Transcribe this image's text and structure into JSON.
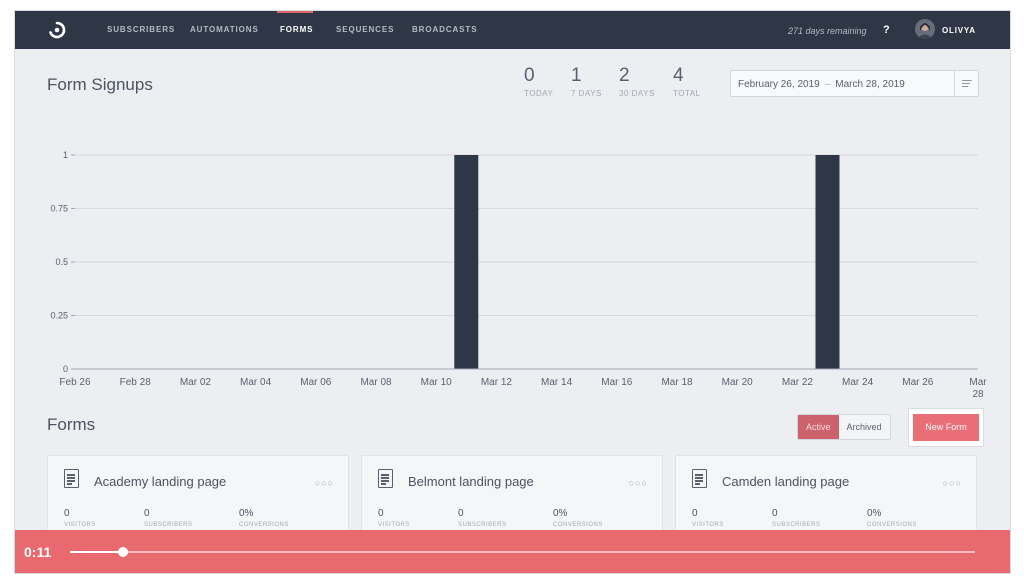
{
  "nav": {
    "items": [
      {
        "label": "SUBSCRIBERS",
        "active": false
      },
      {
        "label": "AUTOMATIONS",
        "active": false
      },
      {
        "label": "FORMS",
        "active": true
      },
      {
        "label": "SEQUENCES",
        "active": false
      },
      {
        "label": "BROADCASTS",
        "active": false
      }
    ],
    "days_remaining": "271 days remaining",
    "help": "?",
    "user": "OLIVYA",
    "logo_icon": "convertkit-logo-icon",
    "accent_color": "#e0565c"
  },
  "page": {
    "title": "Form Signups",
    "stats": [
      {
        "value": "0",
        "label": "TODAY"
      },
      {
        "value": "1",
        "label": "7 DAYS"
      },
      {
        "value": "2",
        "label": "30 DAYS"
      },
      {
        "value": "4",
        "label": "TOTAL"
      }
    ],
    "date_range": {
      "start": "February 26, 2019",
      "separator": "–",
      "end": "March 28, 2019"
    }
  },
  "chart_data": {
    "type": "bar",
    "categories": [
      "Feb 26",
      "Feb 27",
      "Feb 28",
      "Mar 01",
      "Mar 02",
      "Mar 03",
      "Mar 04",
      "Mar 05",
      "Mar 06",
      "Mar 07",
      "Mar 08",
      "Mar 09",
      "Mar 10",
      "Mar 11",
      "Mar 12",
      "Mar 13",
      "Mar 14",
      "Mar 15",
      "Mar 16",
      "Mar 17",
      "Mar 18",
      "Mar 19",
      "Mar 20",
      "Mar 21",
      "Mar 22",
      "Mar 23",
      "Mar 24",
      "Mar 25",
      "Mar 26",
      "Mar 27",
      "Mar 28"
    ],
    "values": [
      0,
      0,
      0,
      0,
      0,
      0,
      0,
      0,
      0,
      0,
      0,
      0,
      0,
      1,
      0,
      0,
      0,
      0,
      0,
      0,
      0,
      0,
      0,
      0,
      0,
      1,
      0,
      0,
      0,
      0,
      0
    ],
    "tick_labels": [
      "Feb 26",
      "Feb 28",
      "Mar 02",
      "Mar 04",
      "Mar 06",
      "Mar 08",
      "Mar 10",
      "Mar 12",
      "Mar 14",
      "Mar 16",
      "Mar 18",
      "Mar 20",
      "Mar 22",
      "Mar 24",
      "Mar 26",
      "Mar 28"
    ],
    "y_ticks": [
      "0",
      "0.25",
      "0.5",
      "0.75",
      "1"
    ],
    "ylim": [
      0,
      1
    ],
    "grid": true,
    "bar_color": "#1e2638",
    "title": "",
    "xlabel": "",
    "ylabel": ""
  },
  "forms": {
    "title": "Forms",
    "toggle": {
      "active": "Active",
      "archived": "Archived"
    },
    "new_form": "New Form",
    "cards": [
      {
        "name": "Academy landing page",
        "visitors": "0",
        "subscribers": "0",
        "conversions": "0%"
      },
      {
        "name": "Belmont landing page",
        "visitors": "0",
        "subscribers": "0",
        "conversions": "0%"
      },
      {
        "name": "Camden landing page",
        "visitors": "0",
        "subscribers": "0",
        "conversions": "0%"
      }
    ],
    "labels": {
      "visitors": "VISITORS",
      "subscribers": "SUBSCRIBERS",
      "conversions": "CONVERSIONS"
    },
    "more_icon": "more-dots-icon"
  },
  "player": {
    "time": "0:11",
    "progress": 0.059,
    "color": "#e8696e"
  }
}
